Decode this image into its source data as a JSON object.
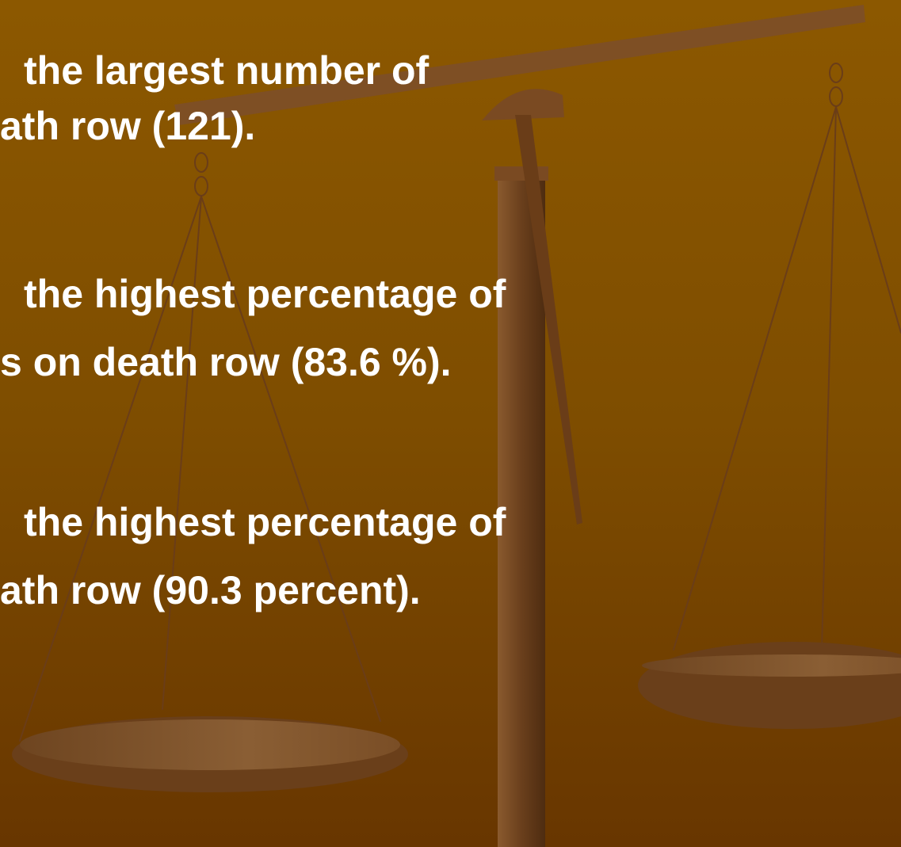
{
  "blocks": [
    {
      "lines": [
        "the largest number of",
        "ath row (121)."
      ]
    },
    {
      "lines": [
        "the highest percentage of",
        "s on death row (83.6 %)."
      ]
    },
    {
      "lines": [
        "the highest percentage of",
        "ath row (90.3 percent)."
      ]
    }
  ]
}
